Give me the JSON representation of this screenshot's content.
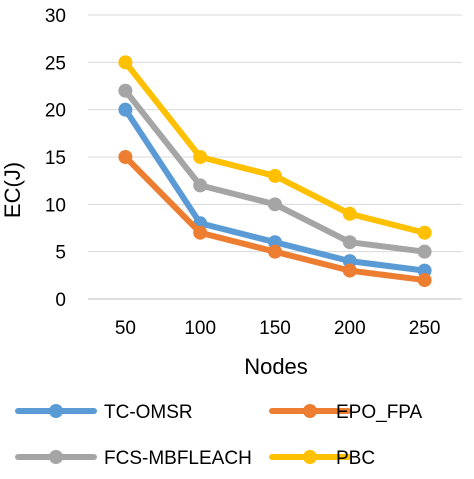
{
  "chart_data": {
    "type": "line",
    "title": "",
    "xlabel": "Nodes",
    "ylabel": "EC(J)",
    "categories": [
      "50",
      "100",
      "150",
      "200",
      "250"
    ],
    "ylim": [
      0,
      30
    ],
    "yticks": [
      0,
      5,
      10,
      15,
      20,
      25,
      30
    ],
    "grid": true,
    "legend_position": "bottom",
    "series": [
      {
        "name": "TC-OMSR",
        "color": "#5B9BD5",
        "values": [
          20,
          8,
          6,
          4,
          3
        ]
      },
      {
        "name": "EPO_FPA",
        "color": "#ED7D31",
        "values": [
          15,
          7,
          5,
          3,
          2
        ]
      },
      {
        "name": "FCS-MBFLEACH",
        "color": "#A5A5A5",
        "values": [
          22,
          12,
          10,
          6,
          5
        ]
      },
      {
        "name": "PBC",
        "color": "#FFC000",
        "values": [
          25,
          15,
          13,
          9,
          7
        ]
      }
    ]
  }
}
